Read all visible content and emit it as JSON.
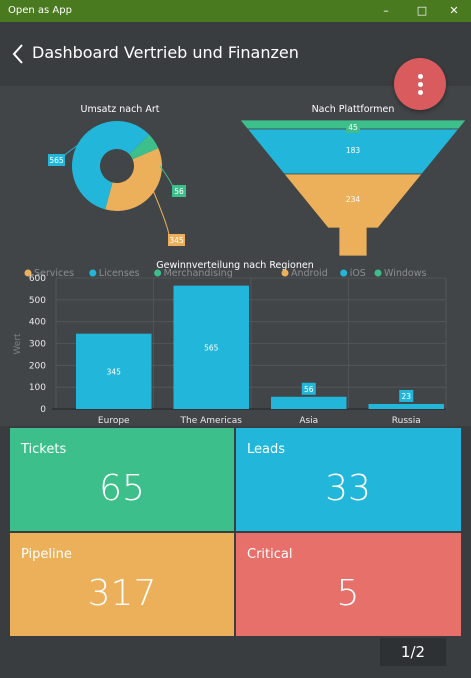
{
  "window": {
    "title": "Open as App"
  },
  "header": {
    "title": "Dashboard Vertrieb und Finanzen"
  },
  "colors": {
    "green": "#3dbf8c",
    "blue": "#22b7da",
    "orange": "#ecb05a",
    "red": "#e8706b",
    "titlebar": "#4a7a1f",
    "fab": "#d95b5e"
  },
  "icons": {
    "back": "back-arrow-icon",
    "menu": "more-vertical-icon"
  },
  "chart_data": [
    {
      "type": "pie",
      "title": "Umsatz nach Art",
      "categories": [
        "Services",
        "Licenses",
        "Merchandising"
      ],
      "values": [
        345,
        565,
        56
      ],
      "legend": "bottom"
    },
    {
      "type": "funnel",
      "title": "Nach Plattformen",
      "categories": [
        "Android",
        "iOS",
        "Windows"
      ],
      "values": [
        234,
        183,
        45
      ],
      "legend": "bottom"
    },
    {
      "type": "bar",
      "title": "Gewinnverteilung nach Regionen",
      "categories": [
        "Europe",
        "The Americas",
        "Asia",
        "Russia"
      ],
      "values": [
        345,
        565,
        56,
        23
      ],
      "ylabel": "Wert",
      "ylim": [
        0,
        600
      ],
      "yticks": [
        0,
        100,
        200,
        300,
        400,
        500,
        600
      ],
      "grid": true
    }
  ],
  "tiles": [
    {
      "label": "Tickets",
      "value": "65"
    },
    {
      "label": "Leads",
      "value": "33"
    },
    {
      "label": "Pipeline",
      "value": "317"
    },
    {
      "label": "Critical",
      "value": "5"
    }
  ],
  "pager": "1/2"
}
